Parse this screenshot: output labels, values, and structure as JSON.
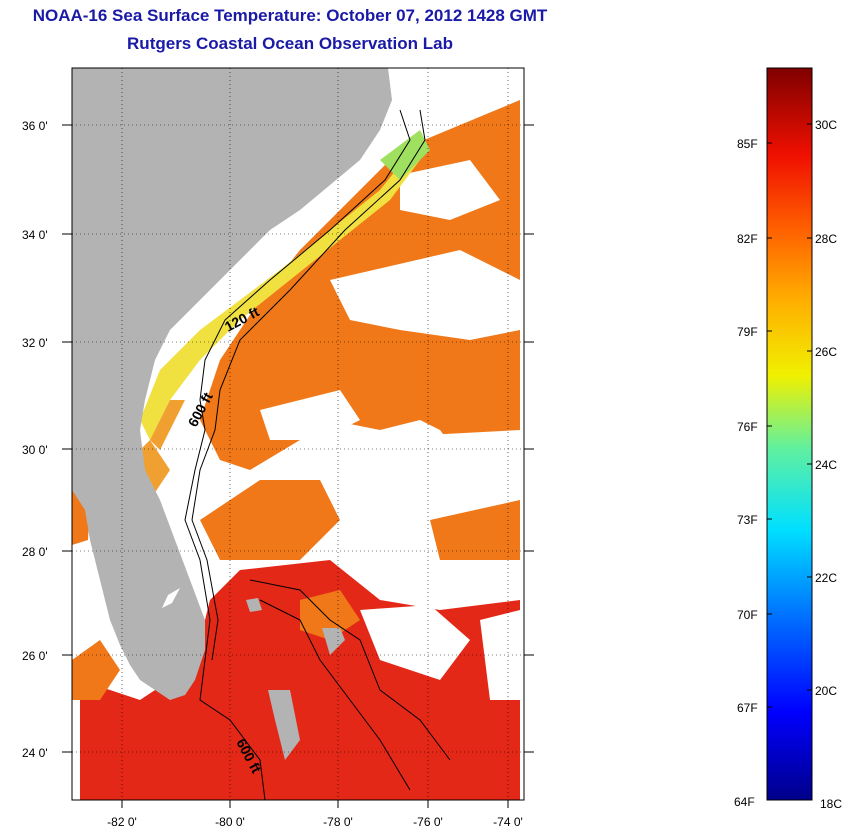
{
  "title": {
    "line1": "NOAA-16 Sea Surface Temperature:  October 07, 2012 1428 GMT",
    "line2": "Rutgers Coastal Ocean Observation Lab"
  },
  "map": {
    "lat_ticks": [
      "36 0'",
      "34 0'",
      "32 0'",
      "30 0'",
      "28 0'",
      "26 0'",
      "24 0'"
    ],
    "lon_ticks": [
      "-82 0'",
      "-80 0'",
      "-78 0'",
      "-76 0'",
      "-74 0'"
    ],
    "isobath_labels": [
      "120 ft",
      "600 ft",
      "600 ft"
    ],
    "colors": {
      "land": "#b3b3b3",
      "cloud": "#ffffff",
      "warm": "#f07818",
      "hot": "#e42818",
      "cool": "#f0e040"
    }
  },
  "colorbar": {
    "fahrenheit": [
      "85F",
      "82F",
      "79F",
      "76F",
      "73F",
      "70F",
      "67F",
      "64F"
    ],
    "celsius": [
      "30C",
      "28C",
      "26C",
      "24C",
      "22C",
      "20C",
      "18C"
    ]
  }
}
